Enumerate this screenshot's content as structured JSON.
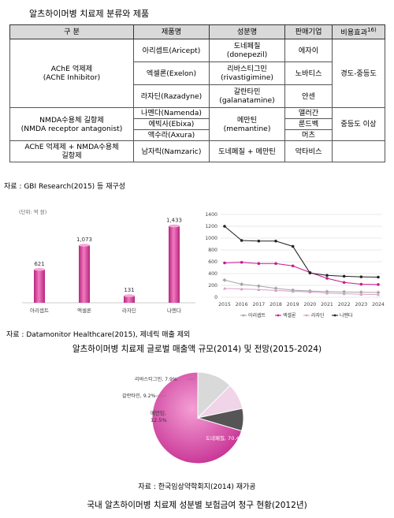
{
  "table_title": "알츠하이머병 치료제 분류와 제품",
  "table": {
    "headers": [
      "구 분",
      "제품명",
      "성분명",
      "판매기업",
      "비용효과"
    ],
    "header_sup": "16)",
    "groups": [
      {
        "category": [
          "AChE 억제제",
          "(AChE Inhibitor)"
        ],
        "effect": "경도-중등도",
        "rows": [
          {
            "product": "아리셉트(Aricept)",
            "ingredient": [
              "도네페질",
              "(donepezil)"
            ],
            "company": "에자이"
          },
          {
            "product": "엑셀론(Exelon)",
            "ingredient": [
              "리바스티그민",
              "(rivastigimine)"
            ],
            "company": "노바티스"
          },
          {
            "product": "라자딘(Razadyne)",
            "ingredient": [
              "갈란타민",
              "(galanatamine)"
            ],
            "company": "얀센"
          }
        ]
      },
      {
        "category": [
          "NMDA수용체 길항제",
          "(NMDA receptor antagonist)"
        ],
        "effect": "중등도 이상",
        "ingredient": [
          "메만틴",
          "(memantine)"
        ],
        "rows": [
          {
            "product": "나멘다(Namenda)",
            "company": "앨러간"
          },
          {
            "product": "에빅사(Ebixa)",
            "company": "룬드벡"
          },
          {
            "product": "액수라(Axura)",
            "company": "머츠"
          }
        ]
      },
      {
        "category": [
          "AChE 억제제 + NMDA수용체",
          "길항제"
        ],
        "product": "남자릭(Namzaric)",
        "ingredient": "도네페질 + 메만틴",
        "company": "악타비스"
      }
    ]
  },
  "table_source": "자료 : GBI Research(2015) 등 재구성",
  "bar_unit": "(단위: 억 원)",
  "line_source": "자료 : Datamonitor Healthcare(2015), 제네릭 매출 제외",
  "caption1": "알츠하이머병 치료제 글로벌 매출액 규모(2014) 및 전망(2015-2024)",
  "pie_source": "자료 : 한국임상약학회지(2014) 재가공",
  "caption2": "국내 알츠하이머병 치료제 성분별 보험금여 청구 현황(2012년)",
  "chart_data": [
    {
      "type": "bar",
      "categories": [
        "아리셉트",
        "엑셀론",
        "라자딘",
        "나멘다"
      ],
      "values": [
        621,
        1073,
        131,
        1433
      ],
      "value_labels": [
        "621",
        "1,073",
        "131",
        "1,433"
      ],
      "ylabel": "(단위: 억 원)",
      "ylim": [
        0,
        1500
      ],
      "color": "#e64aa6"
    },
    {
      "type": "line",
      "x": [
        2015,
        2016,
        2017,
        2018,
        2019,
        2020,
        2021,
        2022,
        2023,
        2024
      ],
      "ylim": [
        0,
        1400
      ],
      "yticks": [
        0,
        200,
        400,
        600,
        800,
        1000,
        1200,
        1400
      ],
      "grid": true,
      "legend": "bottom",
      "series": [
        {
          "name": "아리셉트",
          "color": "#a6a6a6",
          "values": [
            290,
            220,
            190,
            150,
            120,
            105,
            95,
            90,
            85,
            80
          ]
        },
        {
          "name": "엑셀론",
          "color": "#c8198c",
          "values": [
            580,
            590,
            570,
            570,
            530,
            420,
            320,
            250,
            220,
            215
          ]
        },
        {
          "name": "라자딘",
          "color": "#d8a0c8",
          "values": [
            150,
            140,
            130,
            115,
            100,
            90,
            70,
            60,
            50,
            45
          ]
        },
        {
          "name": "나멘다",
          "color": "#222222",
          "values": [
            1200,
            960,
            950,
            950,
            860,
            410,
            370,
            355,
            345,
            340
          ]
        }
      ]
    },
    {
      "type": "pie",
      "slices": [
        {
          "label": "도네페질",
          "value": 70.4,
          "text": "도네페질, 70.4%",
          "color": "#d63ea3"
        },
        {
          "label": "메만틴",
          "value": 12.5,
          "text": "메만틴,\n12.5%",
          "color": "#d9d9d9"
        },
        {
          "label": "갈란타민",
          "value": 9.2,
          "text": "갈란타민, 9.2%",
          "color": "#f0d4e8"
        },
        {
          "label": "리바스티그민",
          "value": 7.9,
          "text": "리바스티그민, 7.9%",
          "color": "#555555"
        }
      ]
    }
  ]
}
